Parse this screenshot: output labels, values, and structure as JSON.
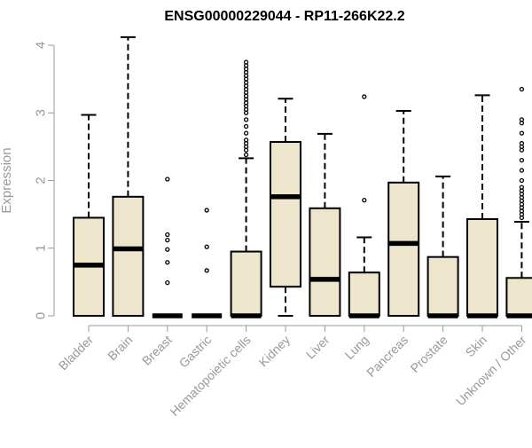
{
  "chart_data": {
    "type": "boxplot",
    "title": "ENSG00000229044 - RP11-266K22.2",
    "xlabel": "",
    "ylabel": "Expression",
    "ylim": [
      0,
      4
    ],
    "yticks": [
      0,
      1,
      2,
      3,
      4
    ],
    "categories": [
      "Bladder",
      "Brain",
      "Breast",
      "Gastric",
      "Hematopoietic cells",
      "Kidney",
      "Liver",
      "Lung",
      "Pancreas",
      "Prostate",
      "Skin",
      "Unknown / Other"
    ],
    "boxes": [
      {
        "category": "Bladder",
        "whisker_low": 0,
        "q1": 0,
        "median": 0.75,
        "q3": 1.45,
        "whisker_high": 2.97,
        "outliers": []
      },
      {
        "category": "Brain",
        "whisker_low": 0,
        "q1": 0,
        "median": 0.99,
        "q3": 1.76,
        "whisker_high": 4.12,
        "outliers": []
      },
      {
        "category": "Breast",
        "whisker_low": 0,
        "q1": 0,
        "median": 0,
        "q3": 0,
        "whisker_high": 0,
        "outliers": [
          0.49,
          0.79,
          0.98,
          1.12,
          1.2,
          2.02
        ]
      },
      {
        "category": "Gastric",
        "whisker_low": 0,
        "q1": 0,
        "median": 0,
        "q3": 0,
        "whisker_high": 0,
        "outliers": [
          0.67,
          1.02,
          1.56
        ]
      },
      {
        "category": "Hematopoietic cells",
        "whisker_low": 0,
        "q1": 0,
        "median": 0,
        "q3": 0.95,
        "whisker_high": 2.33,
        "outliers": [
          2.38,
          2.45,
          2.5,
          2.55,
          2.6,
          2.7,
          2.8,
          2.9,
          3.0,
          3.05,
          3.1,
          3.15,
          3.2,
          3.25,
          3.3,
          3.35,
          3.4,
          3.45,
          3.5,
          3.55,
          3.6,
          3.65,
          3.7,
          3.75
        ]
      },
      {
        "category": "Kidney",
        "whisker_low": 0,
        "q1": 0.43,
        "median": 1.76,
        "q3": 2.57,
        "whisker_high": 3.21,
        "outliers": []
      },
      {
        "category": "Liver",
        "whisker_low": 0,
        "q1": 0,
        "median": 0.54,
        "q3": 1.59,
        "whisker_high": 2.69,
        "outliers": []
      },
      {
        "category": "Lung",
        "whisker_low": 0,
        "q1": 0,
        "median": 0,
        "q3": 0.64,
        "whisker_high": 1.16,
        "outliers": [
          1.71,
          3.24
        ]
      },
      {
        "category": "Pancreas",
        "whisker_low": 0,
        "q1": 0,
        "median": 1.07,
        "q3": 1.97,
        "whisker_high": 3.03,
        "outliers": []
      },
      {
        "category": "Prostate",
        "whisker_low": 0,
        "q1": 0,
        "median": 0,
        "q3": 0.87,
        "whisker_high": 2.06,
        "outliers": []
      },
      {
        "category": "Skin",
        "whisker_low": 0,
        "q1": 0,
        "median": 0,
        "q3": 1.43,
        "whisker_high": 3.26,
        "outliers": []
      },
      {
        "category": "Unknown / Other",
        "whisker_low": 0,
        "q1": 0,
        "median": 0,
        "q3": 0.56,
        "whisker_high": 1.39,
        "outliers": [
          1.45,
          1.5,
          1.55,
          1.6,
          1.65,
          1.7,
          1.75,
          1.8,
          1.85,
          1.9,
          2.0,
          2.15,
          2.3,
          2.45,
          2.5,
          2.55,
          2.7,
          2.85,
          2.9,
          3.35
        ]
      }
    ],
    "box_fill": "#ede6cc",
    "box_stroke": "#000000",
    "axis_color": "#999999",
    "grid": false,
    "legend": "none"
  }
}
